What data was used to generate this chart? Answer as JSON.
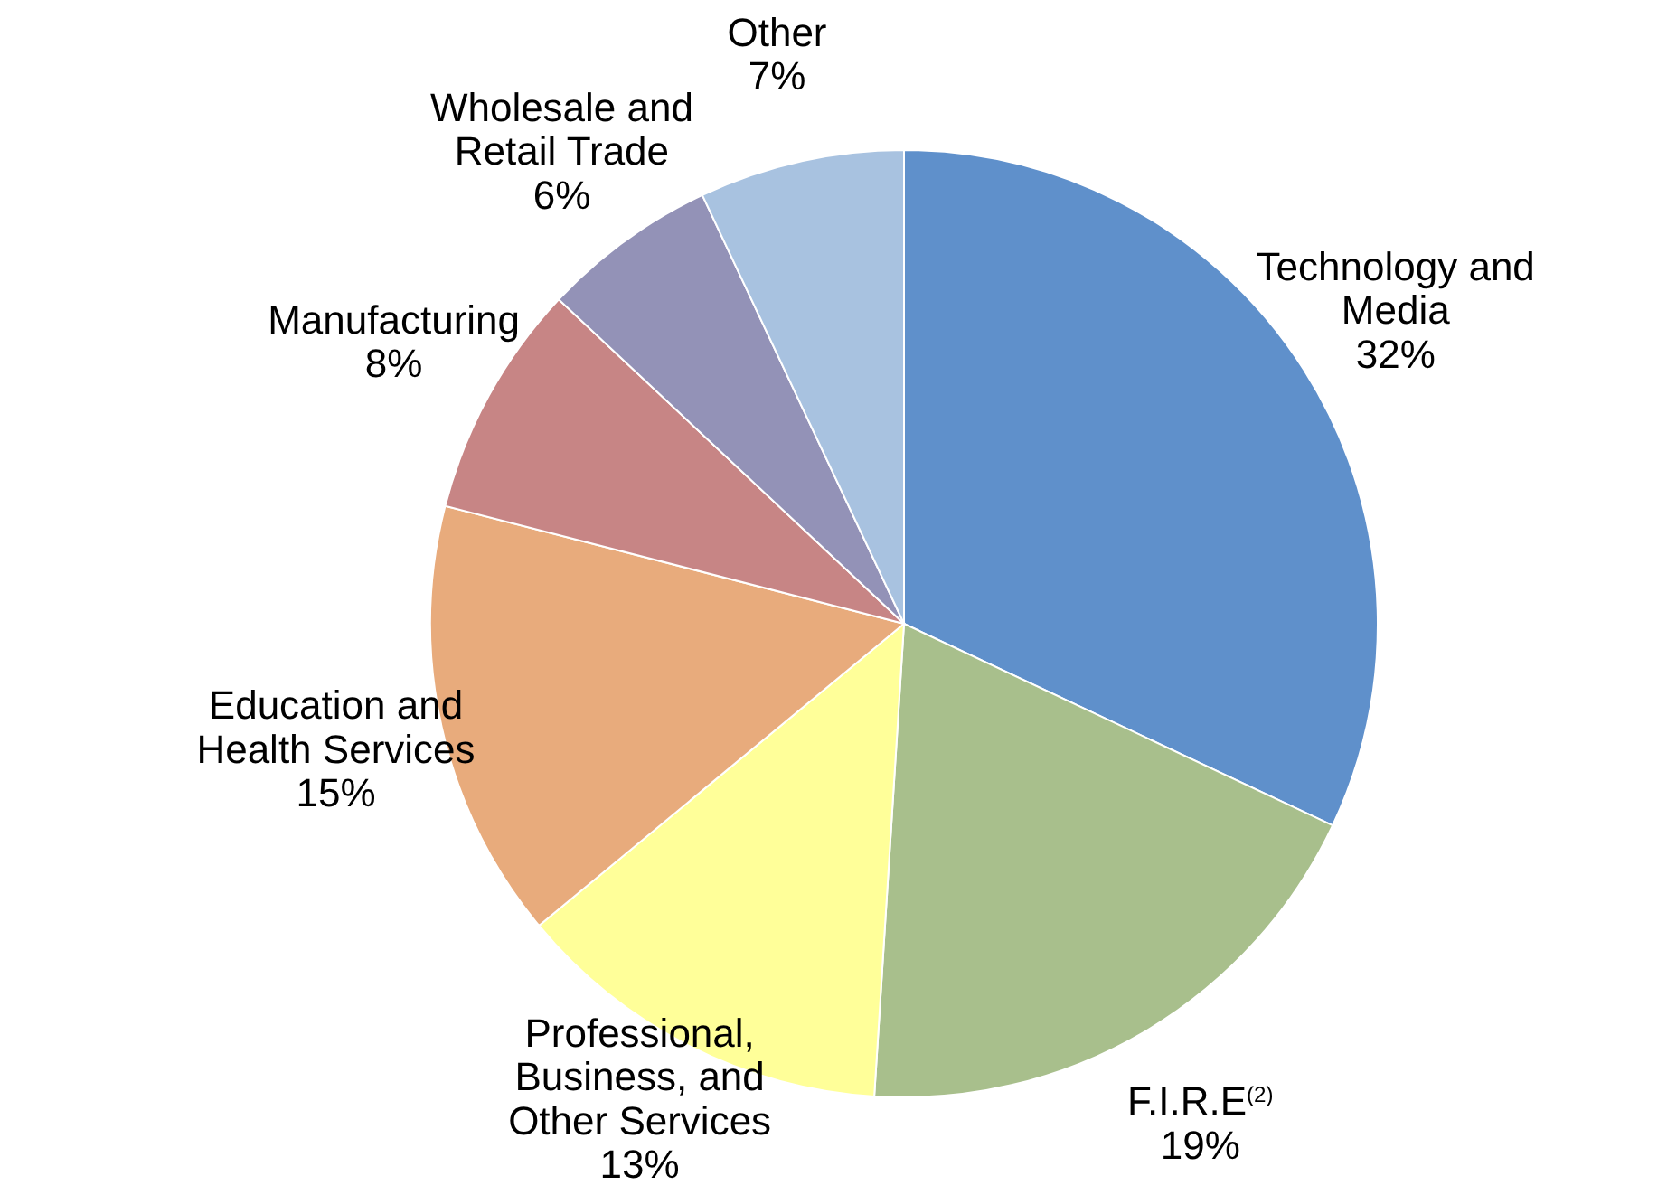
{
  "chart_data": {
    "type": "pie",
    "categories": [
      "Technology and Media",
      "F.I.R.E$^{(2)}$",
      "Professional, Business, and Other Services",
      "Education and Health Services",
      "Manufacturing",
      "Wholesale and Retail Trade",
      "Other"
    ],
    "values": [
      32,
      19,
      13,
      15,
      8,
      6,
      7
    ],
    "value_labels": [
      "32%",
      "19%",
      "13%",
      "15%",
      "8%",
      "6%",
      "7%"
    ],
    "colors": [
      "#5f90cb",
      "#a8bf8c",
      "#ffff99",
      "#e8ab7c",
      "#c78585",
      "#9392b7",
      "#a8c2e0"
    ]
  }
}
